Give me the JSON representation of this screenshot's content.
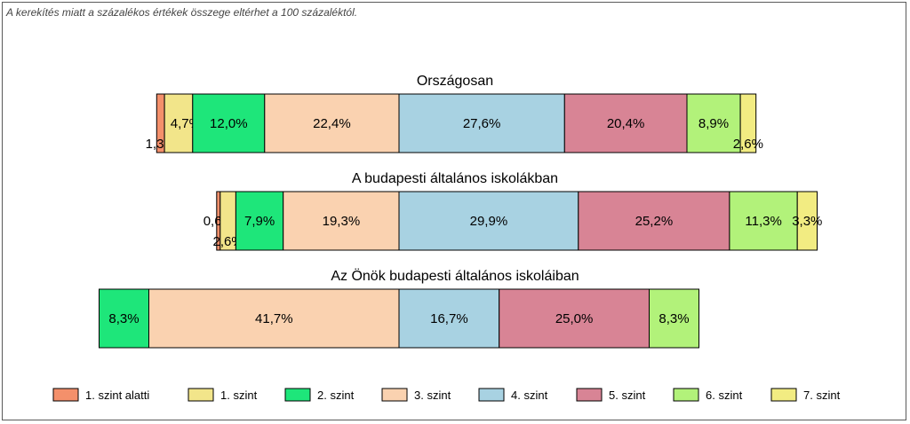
{
  "note": "A kerekítés miatt a  százalékos értékek összege eltérhet a 100 százaléktól.",
  "chart_data": {
    "type": "bar",
    "orientation": "horizontal",
    "stacked": true,
    "unit": "%",
    "categories": [
      "1. szint alatti",
      "1. szint",
      "2. szint",
      "3. szint",
      "4. szint",
      "5. szint",
      "6. szint",
      "7. szint"
    ],
    "colors": [
      "#f4906b",
      "#f2e58a",
      "#1ee67a",
      "#fad2b0",
      "#a8d2e2",
      "#d88495",
      "#b2f27a",
      "#f2ec82"
    ],
    "groups": [
      {
        "title": "Országosan",
        "values": [
          1.3,
          4.7,
          12.0,
          22.4,
          27.6,
          20.4,
          8.9,
          2.6
        ],
        "labels": [
          "1,3%",
          "4,7%",
          "12,0%",
          "22,4%",
          "27,6%",
          "20,4%",
          "8,9%",
          "2,6%"
        ]
      },
      {
        "title": "A budapesti általános iskolákban",
        "values": [
          0.6,
          2.6,
          7.9,
          19.3,
          29.9,
          25.2,
          11.3,
          3.3
        ],
        "labels": [
          "0,6%",
          "2,6%",
          "7,9%",
          "19,3%",
          "29,9%",
          "25,2%",
          "11,3%",
          "3,3%"
        ]
      },
      {
        "title": "Az Önök budapesti általános iskoláiban",
        "values": [
          0,
          0,
          8.3,
          41.7,
          16.7,
          25.0,
          8.3,
          0
        ],
        "labels": [
          "",
          "",
          "8,3%",
          "41,7%",
          "16,7%",
          "25,0%",
          "8,3%",
          ""
        ]
      }
    ],
    "legend": [
      "1. szint alatti",
      "1. szint",
      "2. szint",
      "3. szint",
      "4. szint",
      "5. szint",
      "6. szint",
      "7. szint"
    ],
    "legend_position": "bottom"
  }
}
